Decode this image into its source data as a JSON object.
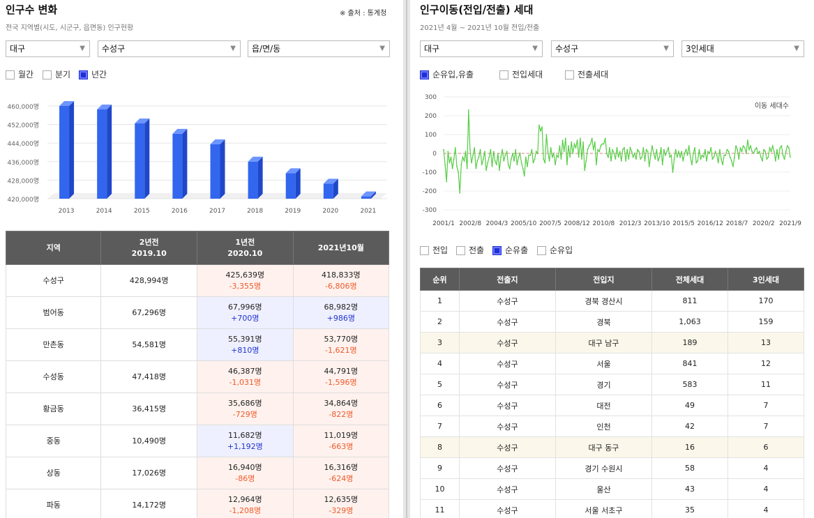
{
  "left": {
    "title": "인구수 변화",
    "subtitle": "전국 지역별(시도, 시군구, 읍면동) 인구현황",
    "source": "※ 출처 : 통계청",
    "selects": [
      "대구",
      "수성구",
      "읍/면/동"
    ],
    "periods": [
      {
        "label": "월간",
        "checked": false
      },
      {
        "label": "분기",
        "checked": false
      },
      {
        "label": "년간",
        "checked": true
      }
    ],
    "table": {
      "headers": [
        {
          "l1": "지역",
          "l2": ""
        },
        {
          "l1": "2년전",
          "l2": "2019.10"
        },
        {
          "l1": "1년전",
          "l2": "2020.10"
        },
        {
          "l1": "2021년10월",
          "l2": ""
        }
      ],
      "rows": [
        {
          "region": "수성구",
          "y2019": "428,994명",
          "y2020": "425,639명",
          "d2020": "-3,355명",
          "y2021": "418,833명",
          "d2021": "-6,806명"
        },
        {
          "region": "범어동",
          "y2019": "67,296명",
          "y2020": "67,996명",
          "d2020": "+700명",
          "y2021": "68,982명",
          "d2021": "+986명"
        },
        {
          "region": "만촌동",
          "y2019": "54,581명",
          "y2020": "55,391명",
          "d2020": "+810명",
          "y2021": "53,770명",
          "d2021": "-1,621명"
        },
        {
          "region": "수성동",
          "y2019": "47,418명",
          "y2020": "46,387명",
          "d2020": "-1,031명",
          "y2021": "44,791명",
          "d2021": "-1,596명"
        },
        {
          "region": "황금동",
          "y2019": "36,415명",
          "y2020": "35,686명",
          "d2020": "-729명",
          "y2021": "34,864명",
          "d2021": "-822명"
        },
        {
          "region": "중동",
          "y2019": "10,490명",
          "y2020": "11,682명",
          "d2020": "+1,192명",
          "y2021": "11,019명",
          "d2021": "-663명"
        },
        {
          "region": "상동",
          "y2019": "17,026명",
          "y2020": "16,940명",
          "d2020": "-86명",
          "y2021": "16,316명",
          "d2021": "-624명"
        },
        {
          "region": "파동",
          "y2019": "14,172명",
          "y2020": "12,964명",
          "d2020": "-1,208명",
          "y2021": "12,635명",
          "d2021": "-329명"
        }
      ]
    }
  },
  "right": {
    "title": "인구이동(전입/전출) 세대",
    "subtitle": "2021년 4월 ~ 2021년 10월 전입/전출",
    "selects": [
      "대구",
      "수성구",
      "3인세대"
    ],
    "filters": [
      {
        "label": "순유입,유출",
        "checked": true
      },
      {
        "label": "전입세대",
        "checked": false
      },
      {
        "label": "전출세대",
        "checked": false
      }
    ],
    "tabs": [
      {
        "label": "전입",
        "checked": false
      },
      {
        "label": "전출",
        "checked": false
      },
      {
        "label": "순유출",
        "checked": true
      },
      {
        "label": "순유입",
        "checked": false
      }
    ],
    "table": {
      "headers": [
        "순위",
        "전출지",
        "전입지",
        "전체세대",
        "3인세대"
      ],
      "rows": [
        {
          "rank": "1",
          "from": "수성구",
          "to": "경북 경산시",
          "total": "811",
          "three": "170",
          "hl": false
        },
        {
          "rank": "2",
          "from": "수성구",
          "to": "경북",
          "total": "1,063",
          "three": "159",
          "hl": false
        },
        {
          "rank": "3",
          "from": "수성구",
          "to": "대구 남구",
          "total": "189",
          "three": "13",
          "hl": true
        },
        {
          "rank": "4",
          "from": "수성구",
          "to": "서울",
          "total": "841",
          "three": "12",
          "hl": false
        },
        {
          "rank": "5",
          "from": "수성구",
          "to": "경기",
          "total": "583",
          "three": "11",
          "hl": false
        },
        {
          "rank": "6",
          "from": "수성구",
          "to": "대전",
          "total": "49",
          "three": "7",
          "hl": false
        },
        {
          "rank": "7",
          "from": "수성구",
          "to": "인천",
          "total": "42",
          "three": "7",
          "hl": false
        },
        {
          "rank": "8",
          "from": "수성구",
          "to": "대구 동구",
          "total": "16",
          "three": "6",
          "hl": true
        },
        {
          "rank": "9",
          "from": "수성구",
          "to": "경기 수원시",
          "total": "58",
          "three": "4",
          "hl": false
        },
        {
          "rank": "10",
          "from": "수성구",
          "to": "울산",
          "total": "43",
          "three": "4",
          "hl": false
        },
        {
          "rank": "11",
          "from": "수성구",
          "to": "서울 서초구",
          "total": "35",
          "three": "4",
          "hl": false
        }
      ]
    }
  },
  "chart_data": [
    {
      "type": "bar",
      "categories": [
        "2013",
        "2014",
        "2015",
        "2016",
        "2017",
        "2018",
        "2019",
        "2020",
        "2021"
      ],
      "values": [
        461000,
        458500,
        452500,
        448000,
        443500,
        436000,
        431000,
        426500,
        421000
      ],
      "ylim": [
        420000,
        460000
      ],
      "yticks": [
        "420,000명",
        "428,000명",
        "436,000명",
        "444,000명",
        "452,000명",
        "460,000명"
      ],
      "ytick_values": [
        420000,
        428000,
        436000,
        444000,
        452000,
        460000
      ],
      "grid": true,
      "color": "#3366ee"
    },
    {
      "type": "line",
      "legend": "이동 세대수",
      "ylim": [
        -300,
        300
      ],
      "yticks": [
        -300,
        -200,
        -100,
        0,
        100,
        200,
        300
      ],
      "xticks": [
        "2001/1",
        "2002/8",
        "2004/3",
        "2005/10",
        "2007/5",
        "2008/12",
        "2010/8",
        "2012/3",
        "2013/10",
        "2015/5",
        "2016/12",
        "2018/7",
        "2020/2",
        "2021/9"
      ],
      "x_range": [
        "2001/1",
        "2021/9"
      ],
      "series": [
        {
          "name": "이동 세대수",
          "color": "#55cc44",
          "values": [
            20,
            -60,
            -150,
            10,
            -50,
            -20,
            -80,
            -30,
            30,
            -70,
            -100,
            -210,
            -60,
            -20,
            -40,
            10,
            -80,
            230,
            20,
            -50,
            -10,
            30,
            -80,
            -40,
            -20,
            20,
            -60,
            -30,
            10,
            -90,
            -50,
            -20,
            20,
            -70,
            10,
            -40,
            -60,
            0,
            -90,
            -20,
            20,
            -40,
            -10,
            10,
            -60,
            -80,
            -30,
            0,
            -40,
            20,
            -60,
            -20,
            0,
            -50,
            -80,
            -120,
            -20,
            -70,
            -10,
            -10,
            20,
            -50,
            -30,
            10,
            0,
            150,
            120,
            140,
            -30,
            -50,
            100,
            10,
            -40,
            30,
            -20,
            0,
            -60,
            -10,
            -20,
            40,
            -30,
            70,
            10,
            80,
            -60,
            40,
            -20,
            60,
            0,
            50,
            30,
            70,
            -20,
            80,
            -30,
            60,
            -90,
            -40,
            20,
            40,
            50,
            80,
            20,
            60,
            -60,
            20,
            10,
            40,
            50,
            50,
            80,
            0,
            -20,
            30,
            -40,
            20,
            0,
            -30,
            30,
            -20,
            10,
            -40,
            20,
            30,
            -40,
            20,
            -30,
            30,
            10,
            -20,
            0,
            -30,
            20,
            10,
            -30,
            -20,
            30,
            -40,
            20,
            10,
            -70,
            -10,
            40,
            0,
            -30,
            20,
            -40,
            -20,
            30,
            -60,
            20,
            -10,
            10,
            30,
            -20,
            -10,
            -100,
            -30,
            20,
            -20,
            10,
            -20,
            10,
            -40,
            0,
            20,
            -10,
            40,
            -20,
            -60,
            0,
            30,
            -50,
            -40,
            20,
            -30,
            -10,
            -20,
            20,
            -40,
            10,
            0,
            30,
            -30,
            -20,
            10,
            -10,
            -50,
            20,
            -30,
            -60,
            -10,
            -10,
            20,
            10,
            -20,
            -40,
            -70,
            -20,
            40,
            20,
            -30,
            30,
            10,
            40,
            30,
            0,
            70,
            20,
            40,
            10,
            0,
            20,
            30,
            0,
            10,
            -20,
            -40,
            20,
            10,
            -30,
            -20,
            30,
            10,
            40,
            10,
            -40,
            20,
            -30,
            30,
            40,
            -10,
            -30,
            10,
            40,
            30,
            -20
          ]
        }
      ],
      "baseline": 0,
      "baseline_color": "#e08080",
      "grid": true
    }
  ]
}
